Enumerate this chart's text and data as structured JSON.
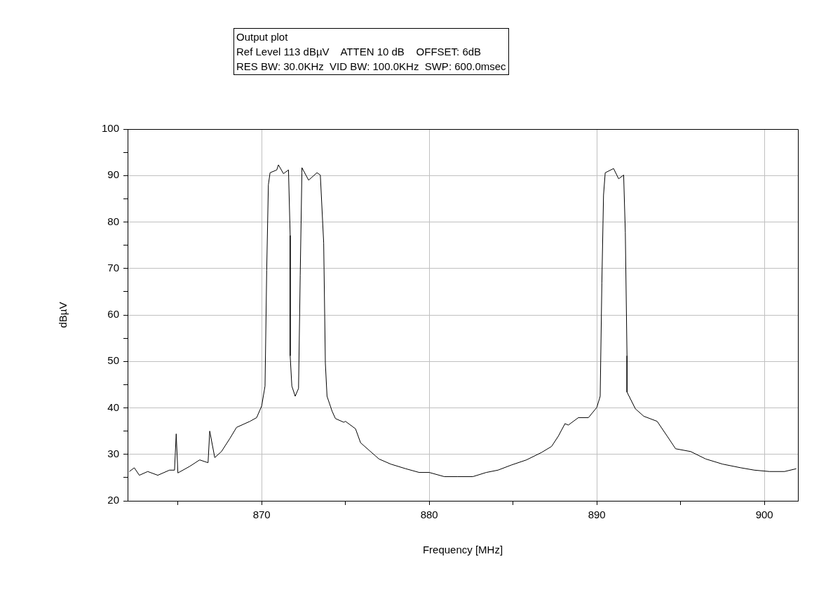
{
  "chart_data": {
    "type": "line",
    "title": "Output plot",
    "subtitle": "Ref Level 113 dBµV    ATTEN 10 dB    OFFSET: 6dB",
    "annotations": [
      "RES BW: 30.0KHz  VID BW: 100.0KHz  SWP: 600.0msec"
    ],
    "xlabel": "Frequency [MHz]",
    "ylabel": "dBµV",
    "color": "#000000",
    "grid": true,
    "xlim": [
      862,
      902
    ],
    "ylim": [
      20,
      100
    ],
    "xticks": [
      {
        "value": 865,
        "label": null
      },
      870,
      {
        "value": 875,
        "label": null
      },
      880,
      {
        "value": 885,
        "label": null
      },
      890,
      {
        "value": 895,
        "label": null
      },
      900
    ],
    "yticks": [
      20,
      {
        "value": 25,
        "label": null
      },
      30,
      {
        "value": 35,
        "label": null
      },
      40,
      {
        "value": 45,
        "label": null
      },
      50,
      {
        "value": 55,
        "label": null
      },
      60,
      {
        "value": 65,
        "label": null
      },
      70,
      {
        "value": 75,
        "label": null
      },
      80,
      {
        "value": 85,
        "label": null
      },
      90,
      {
        "value": 95,
        "label": null
      },
      100
    ],
    "x": [
      862.1,
      862.4,
      862.7,
      863.2,
      863.8,
      864.5,
      864.8,
      864.9,
      865.0,
      865.7,
      866.3,
      866.8,
      866.9,
      867.2,
      867.6,
      868.1,
      868.5,
      869.3,
      869.7,
      870.0,
      870.2,
      870.3,
      870.4,
      870.5,
      870.9,
      871.0,
      871.3,
      871.6,
      871.7,
      871.7,
      871.8,
      872.0,
      872.2,
      872.3,
      872.4,
      872.4,
      872.8,
      873.3,
      873.5,
      873.7,
      873.8,
      873.9,
      874.2,
      874.4,
      874.9,
      875.0,
      875.6,
      875.9,
      876.4,
      877.0,
      877.7,
      878.6,
      879.4,
      880.0,
      880.9,
      881.7,
      882.6,
      883.4,
      884.1,
      884.9,
      885.8,
      886.7,
      887.3,
      887.7,
      888.1,
      888.3,
      888.9,
      889.5,
      890.0,
      890.2,
      890.3,
      890.4,
      890.5,
      891.0,
      891.3,
      891.6,
      891.7,
      891.8,
      891.8,
      892.3,
      892.8,
      893.6,
      894.2,
      894.7,
      895.6,
      896.5,
      897.5,
      898.6,
      899.4,
      900.3,
      901.2,
      901.9
    ],
    "values": [
      26.3,
      27.1,
      25.5,
      26.3,
      25.5,
      26.6,
      26.6,
      34.4,
      26.0,
      27.4,
      28.8,
      28.2,
      35.0,
      29.3,
      30.6,
      33.4,
      35.8,
      37.1,
      37.9,
      40.4,
      44.7,
      69.6,
      88.0,
      90.6,
      91.2,
      92.3,
      90.4,
      91.2,
      77.1,
      51.2,
      44.7,
      42.5,
      44.2,
      68.5,
      90.6,
      91.7,
      89.0,
      90.6,
      90.1,
      75.5,
      49.6,
      42.5,
      39.3,
      37.7,
      36.9,
      37.1,
      35.5,
      32.5,
      30.9,
      29.0,
      27.9,
      26.9,
      26.1,
      26.1,
      25.2,
      25.2,
      25.2,
      26.1,
      26.6,
      27.7,
      28.8,
      30.4,
      31.7,
      33.9,
      36.6,
      36.3,
      37.9,
      37.9,
      40.1,
      42.5,
      66.9,
      85.8,
      90.6,
      91.5,
      89.3,
      90.1,
      77.7,
      51.2,
      43.4,
      39.8,
      38.2,
      37.1,
      33.9,
      31.2,
      30.6,
      29.0,
      27.9,
      27.1,
      26.6,
      26.3,
      26.3,
      26.9
    ]
  }
}
